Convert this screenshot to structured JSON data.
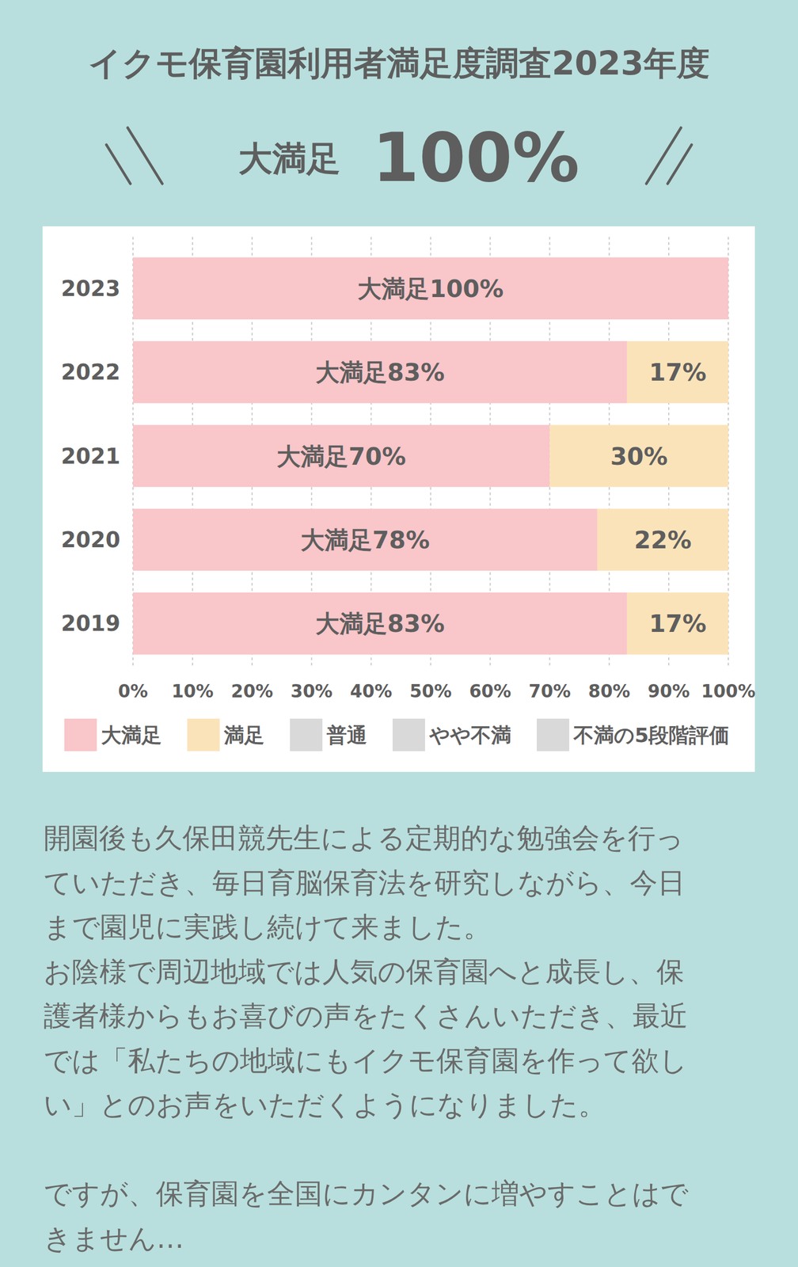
{
  "headline": {
    "label": "大満足",
    "value": "100%"
  },
  "chart_data": {
    "type": "bar",
    "title": "イクモ保育園利用者満足度調査2023年度",
    "orientation": "horizontal",
    "stacked": true,
    "data_labels": true,
    "grid": true,
    "legend": "bottom",
    "categories": [
      "2023",
      "2022",
      "2021",
      "2020",
      "2019"
    ],
    "series": [
      {
        "name": "大満足",
        "color": "#f9c6c9",
        "values": [
          100,
          83,
          70,
          78,
          83
        ],
        "value_labels": [
          "大満足100%",
          "大満足83%",
          "大満足70%",
          "大満足78%",
          "大満足83%"
        ]
      },
      {
        "name": "満足",
        "color": "#fbe3b9",
        "values": [
          0,
          17,
          30,
          22,
          17
        ],
        "value_labels": [
          null,
          "17%",
          "30%",
          "22%",
          "17%"
        ]
      },
      {
        "name": "普通",
        "color": "#d9d9d9",
        "values": [
          0,
          0,
          0,
          0,
          0
        ]
      },
      {
        "name": "やや不満",
        "color": "#d9d9d9",
        "values": [
          0,
          0,
          0,
          0,
          0
        ]
      },
      {
        "name": "不満の5段階評価",
        "color": "#d9d9d9",
        "values": [
          0,
          0,
          0,
          0,
          0
        ]
      }
    ],
    "xlim": [
      0,
      100
    ],
    "xticks": [
      {
        "value": 0,
        "label": "0%"
      },
      {
        "value": 10,
        "label": "10%"
      },
      {
        "value": 20,
        "label": "20%"
      },
      {
        "value": 30,
        "label": "30%"
      },
      {
        "value": 40,
        "label": "40%"
      },
      {
        "value": 50,
        "label": "50%"
      },
      {
        "value": 60,
        "label": "60%"
      },
      {
        "value": 70,
        "label": "70%"
      },
      {
        "value": 80,
        "label": "80%"
      },
      {
        "value": 90,
        "label": "90%"
      },
      {
        "value": 100,
        "label": "100%"
      }
    ]
  },
  "body": [
    [
      "開園後も久保田競先生による定期的な勉強会を行っ",
      "ていただき、毎日育脳保育法を研究しながら、今日",
      "まで園児に実践し続けて来ました。",
      "お陰様で周辺地域では人気の保育園へと成長し、保",
      "護者様からもお喜びの声をたくさんいただき、最近",
      "では「私たちの地域にもイクモ保育園を作って欲し",
      "い」とのお声をいただくようになりました。"
    ],
    [
      "ですが、保育園を全国にカンタンに増やすことはで",
      "きません…"
    ]
  ]
}
